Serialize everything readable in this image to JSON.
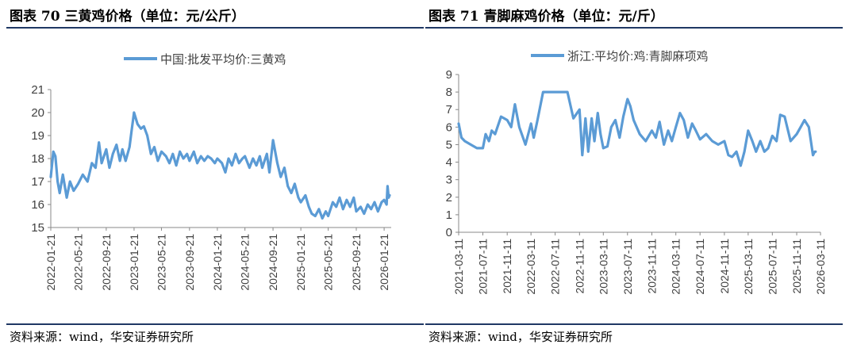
{
  "figures": [
    {
      "title": "图表 70 三黄鸡价格（单位：元/公斤）",
      "source": "资料来源：wind，华安证券研究所"
    },
    {
      "title": "图表 71 青脚麻鸡价格（单位：元/斤）",
      "source": "资料来源：wind，华安证券研究所"
    }
  ],
  "chart_data": [
    {
      "type": "line",
      "title": "",
      "xlabel": "",
      "ylabel": "",
      "ylim": [
        15,
        21
      ],
      "yticks": [
        "15",
        "16",
        "17",
        "18",
        "19",
        "20",
        "21"
      ],
      "xticks": [
        "2022-01-21",
        "2022-05-21",
        "2022-09-21",
        "2023-01-21",
        "2023-05-21",
        "2023-09-21",
        "2024-01-21",
        "2024-05-21",
        "2024-09-21",
        "2025-01-21",
        "2025-05-21",
        "2025-09-21",
        "2026-01-21"
      ],
      "legend_position": "top",
      "grid": false,
      "color": "#5b9bd5",
      "series": [
        {
          "name": "中国:批发平均价:三黄鸡",
          "x": [
            "2022-01-21",
            "2022-02-01",
            "2022-02-10",
            "2022-02-20",
            "2022-03-01",
            "2022-03-15",
            "2022-04-01",
            "2022-04-15",
            "2022-05-01",
            "2022-05-21",
            "2022-06-10",
            "2022-07-01",
            "2022-07-20",
            "2022-08-05",
            "2022-08-20",
            "2022-09-01",
            "2022-09-21",
            "2022-10-05",
            "2022-10-20",
            "2022-11-05",
            "2022-11-20",
            "2022-12-01",
            "2022-12-15",
            "2023-01-01",
            "2023-01-10",
            "2023-01-21",
            "2023-02-05",
            "2023-02-20",
            "2023-03-05",
            "2023-03-20",
            "2023-04-05",
            "2023-04-20",
            "2023-05-05",
            "2023-05-21",
            "2023-06-10",
            "2023-06-25",
            "2023-07-10",
            "2023-07-25",
            "2023-08-10",
            "2023-08-25",
            "2023-09-10",
            "2023-09-21",
            "2023-10-10",
            "2023-10-25",
            "2023-11-10",
            "2023-11-25",
            "2023-12-10",
            "2023-12-25",
            "2024-01-10",
            "2024-01-21",
            "2024-02-10",
            "2024-02-25",
            "2024-03-10",
            "2024-03-25",
            "2024-04-10",
            "2024-04-25",
            "2024-05-10",
            "2024-05-21",
            "2024-06-10",
            "2024-06-25",
            "2024-07-10",
            "2024-07-25",
            "2024-08-05",
            "2024-08-15",
            "2024-08-25",
            "2024-09-05",
            "2024-09-21",
            "2024-10-10",
            "2024-10-25",
            "2024-11-10",
            "2024-11-25",
            "2024-12-10",
            "2024-12-25",
            "2025-01-10",
            "2025-01-21",
            "2025-02-10",
            "2025-02-25",
            "2025-03-10",
            "2025-03-25",
            "2025-04-10",
            "2025-04-25",
            "2025-05-10",
            "2025-05-21",
            "2025-06-10",
            "2025-06-25",
            "2025-07-10",
            "2025-07-25",
            "2025-08-10",
            "2025-08-25",
            "2025-09-10",
            "2025-09-21",
            "2025-10-10",
            "2025-10-25",
            "2025-11-10",
            "2025-11-25",
            "2025-12-10",
            "2025-12-25",
            "2026-01-10",
            "2026-01-21",
            "2026-02-01",
            "2026-02-05",
            "2026-02-10",
            "2026-02-14"
          ],
          "y": [
            17.2,
            18.3,
            18.1,
            17.0,
            16.5,
            17.3,
            16.3,
            17.0,
            16.6,
            16.9,
            17.3,
            17.0,
            17.8,
            17.6,
            18.7,
            17.8,
            18.4,
            17.6,
            18.2,
            18.6,
            17.9,
            18.4,
            17.9,
            18.5,
            19.2,
            20.0,
            19.5,
            19.3,
            19.4,
            19.0,
            18.2,
            18.5,
            17.9,
            18.3,
            18.1,
            17.8,
            18.2,
            17.7,
            18.3,
            18.0,
            18.2,
            17.9,
            18.3,
            17.8,
            18.1,
            17.9,
            18.1,
            18.0,
            17.8,
            18.0,
            17.8,
            17.4,
            18.0,
            17.7,
            18.2,
            17.8,
            18.0,
            18.1,
            17.6,
            18.0,
            17.7,
            18.1,
            17.6,
            17.9,
            18.2,
            17.4,
            18.8,
            17.8,
            17.2,
            17.6,
            16.8,
            16.5,
            16.9,
            16.3,
            16.1,
            16.4,
            15.9,
            15.6,
            15.5,
            15.8,
            15.4,
            15.7,
            15.5,
            16.1,
            15.9,
            16.3,
            15.8,
            16.2,
            15.9,
            16.3,
            15.7,
            15.9,
            15.6,
            16.0,
            15.8,
            16.1,
            15.7,
            16.1,
            16.2,
            16.0,
            16.8,
            16.3,
            16.4
          ]
        }
      ]
    },
    {
      "type": "line",
      "title": "",
      "xlabel": "",
      "ylabel": "",
      "ylim": [
        0,
        9
      ],
      "yticks": [
        "0",
        "1",
        "2",
        "3",
        "4",
        "5",
        "6",
        "7",
        "8",
        "9"
      ],
      "xticks": [
        "2021-03-11",
        "2021-07-11",
        "2021-11-11",
        "2022-03-11",
        "2022-07-11",
        "2022-11-11",
        "2023-03-11",
        "2023-07-11",
        "2023-11-11",
        "2024-03-11",
        "2024-07-11",
        "2024-11-11",
        "2025-03-11",
        "2025-07-11",
        "2025-11-11",
        "2026-03-11"
      ],
      "legend_position": "top",
      "grid": false,
      "color": "#5b9bd5",
      "series": [
        {
          "name": "浙江:平均价:鸡:青脚麻项鸡",
          "x": [
            "2021-03-11",
            "2021-03-25",
            "2021-04-11",
            "2021-05-11",
            "2021-06-11",
            "2021-07-11",
            "2021-07-25",
            "2021-08-11",
            "2021-08-25",
            "2021-09-11",
            "2021-10-11",
            "2021-11-11",
            "2021-12-01",
            "2021-12-20",
            "2022-01-11",
            "2022-02-11",
            "2022-03-11",
            "2022-03-25",
            "2022-04-11",
            "2022-05-11",
            "2022-06-01",
            "2022-06-20",
            "2022-07-11",
            "2022-08-11",
            "2022-09-11",
            "2022-10-11",
            "2022-11-11",
            "2022-11-25",
            "2022-12-11",
            "2022-12-25",
            "2023-01-11",
            "2023-01-25",
            "2023-02-11",
            "2023-02-25",
            "2023-03-11",
            "2023-04-01",
            "2023-04-20",
            "2023-05-11",
            "2023-06-01",
            "2023-06-20",
            "2023-07-11",
            "2023-07-25",
            "2023-08-11",
            "2023-09-11",
            "2023-10-11",
            "2023-11-11",
            "2023-12-01",
            "2023-12-20",
            "2024-01-11",
            "2024-02-01",
            "2024-02-20",
            "2024-03-11",
            "2024-04-01",
            "2024-04-20",
            "2024-05-11",
            "2024-06-01",
            "2024-06-20",
            "2024-07-11",
            "2024-08-11",
            "2024-09-11",
            "2024-10-11",
            "2024-11-11",
            "2024-12-01",
            "2024-12-20",
            "2025-01-11",
            "2025-02-01",
            "2025-02-20",
            "2025-03-11",
            "2025-04-01",
            "2025-04-20",
            "2025-05-11",
            "2025-06-01",
            "2025-06-20",
            "2025-07-11",
            "2025-08-01",
            "2025-08-20",
            "2025-09-11",
            "2025-10-11",
            "2025-11-11",
            "2025-12-01",
            "2025-12-20",
            "2026-01-11",
            "2026-02-01",
            "2026-02-10",
            "2026-02-14"
          ],
          "y": [
            6.2,
            5.4,
            5.2,
            5.0,
            4.8,
            4.8,
            5.6,
            5.2,
            5.8,
            5.6,
            6.6,
            6.4,
            6.0,
            7.3,
            6.0,
            5.0,
            6.2,
            5.4,
            6.3,
            8.0,
            8.0,
            8.0,
            8.0,
            8.0,
            8.0,
            6.5,
            7.0,
            4.4,
            6.5,
            4.6,
            6.5,
            5.2,
            6.8,
            5.6,
            4.8,
            4.9,
            6.0,
            6.4,
            5.4,
            6.6,
            7.6,
            7.2,
            6.4,
            5.6,
            5.2,
            5.8,
            5.4,
            6.3,
            5.0,
            5.8,
            5.2,
            6.0,
            6.8,
            6.4,
            5.4,
            6.2,
            5.8,
            5.3,
            5.6,
            5.2,
            5.0,
            5.2,
            4.4,
            4.3,
            4.6,
            3.8,
            4.6,
            5.8,
            5.2,
            4.6,
            5.2,
            4.6,
            4.8,
            5.5,
            5.2,
            6.7,
            6.6,
            5.2,
            5.6,
            6.0,
            6.4,
            6.0,
            4.4,
            4.6,
            4.6
          ]
        }
      ]
    }
  ]
}
